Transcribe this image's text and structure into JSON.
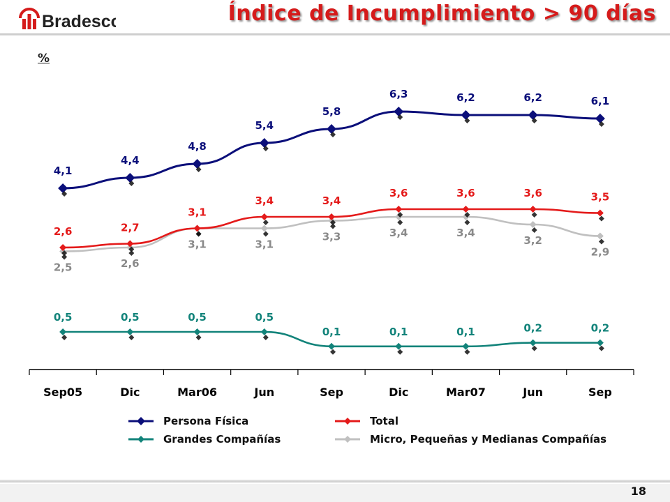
{
  "header": {
    "brand": "Bradesco",
    "title": "Índice de Incumplimiento > 90 días"
  },
  "unit_label": "%",
  "page_number": "18",
  "colors": {
    "title": "#d51b1b",
    "Persona Física": "#0b0f7a",
    "Total": "#e41a1a",
    "Grandes Compañías": "#12837a",
    "Micro, Pequeñas y Medianas Compañías": "#c0c0c0"
  },
  "chart_data": {
    "type": "line",
    "categories": [
      "Sep05",
      "Dic",
      "Mar06",
      "Jun",
      "Sep",
      "Dic",
      "Mar07",
      "Jun",
      "Sep"
    ],
    "ylabel": "%",
    "legend_position": "bottom",
    "grid": false,
    "series": [
      {
        "name": "Persona Física",
        "values": [
          4.1,
          4.4,
          4.8,
          5.4,
          5.8,
          6.3,
          6.2,
          6.2,
          6.1
        ],
        "labels": [
          "4,1",
          "4,4",
          "4,8",
          "5,4",
          "5,8",
          "6,3",
          "6,2",
          "6,2",
          "6,1"
        ]
      },
      {
        "name": "Total",
        "values": [
          2.6,
          2.7,
          3.1,
          3.4,
          3.4,
          3.6,
          3.6,
          3.6,
          3.5
        ],
        "labels": [
          "2,6",
          "2,7",
          "3,1",
          "3,4",
          "3,4",
          "3,6",
          "3,6",
          "3,6",
          "3,5"
        ]
      },
      {
        "name": "Micro, Pequeñas y Medianas Compañías",
        "values": [
          2.5,
          2.6,
          3.1,
          3.1,
          3.3,
          3.4,
          3.4,
          3.2,
          2.9
        ],
        "labels": [
          "2,5",
          "2,6",
          "3,1",
          "3,1",
          "3,3",
          "3,4",
          "3,4",
          "3,2",
          "2,9"
        ]
      },
      {
        "name": "Grandes Compañías",
        "values": [
          0.5,
          0.5,
          0.5,
          0.5,
          0.1,
          0.1,
          0.1,
          0.2,
          0.2
        ],
        "labels": [
          "0,5",
          "0,5",
          "0,5",
          "0,5",
          "0,1",
          "0,1",
          "0,1",
          "0,2",
          "0,2"
        ]
      }
    ]
  },
  "legend": [
    {
      "name": "Persona Física"
    },
    {
      "name": "Total"
    },
    {
      "name": "Grandes Compañías"
    },
    {
      "name": "Micro, Pequeñas y Medianas Compañías"
    }
  ]
}
